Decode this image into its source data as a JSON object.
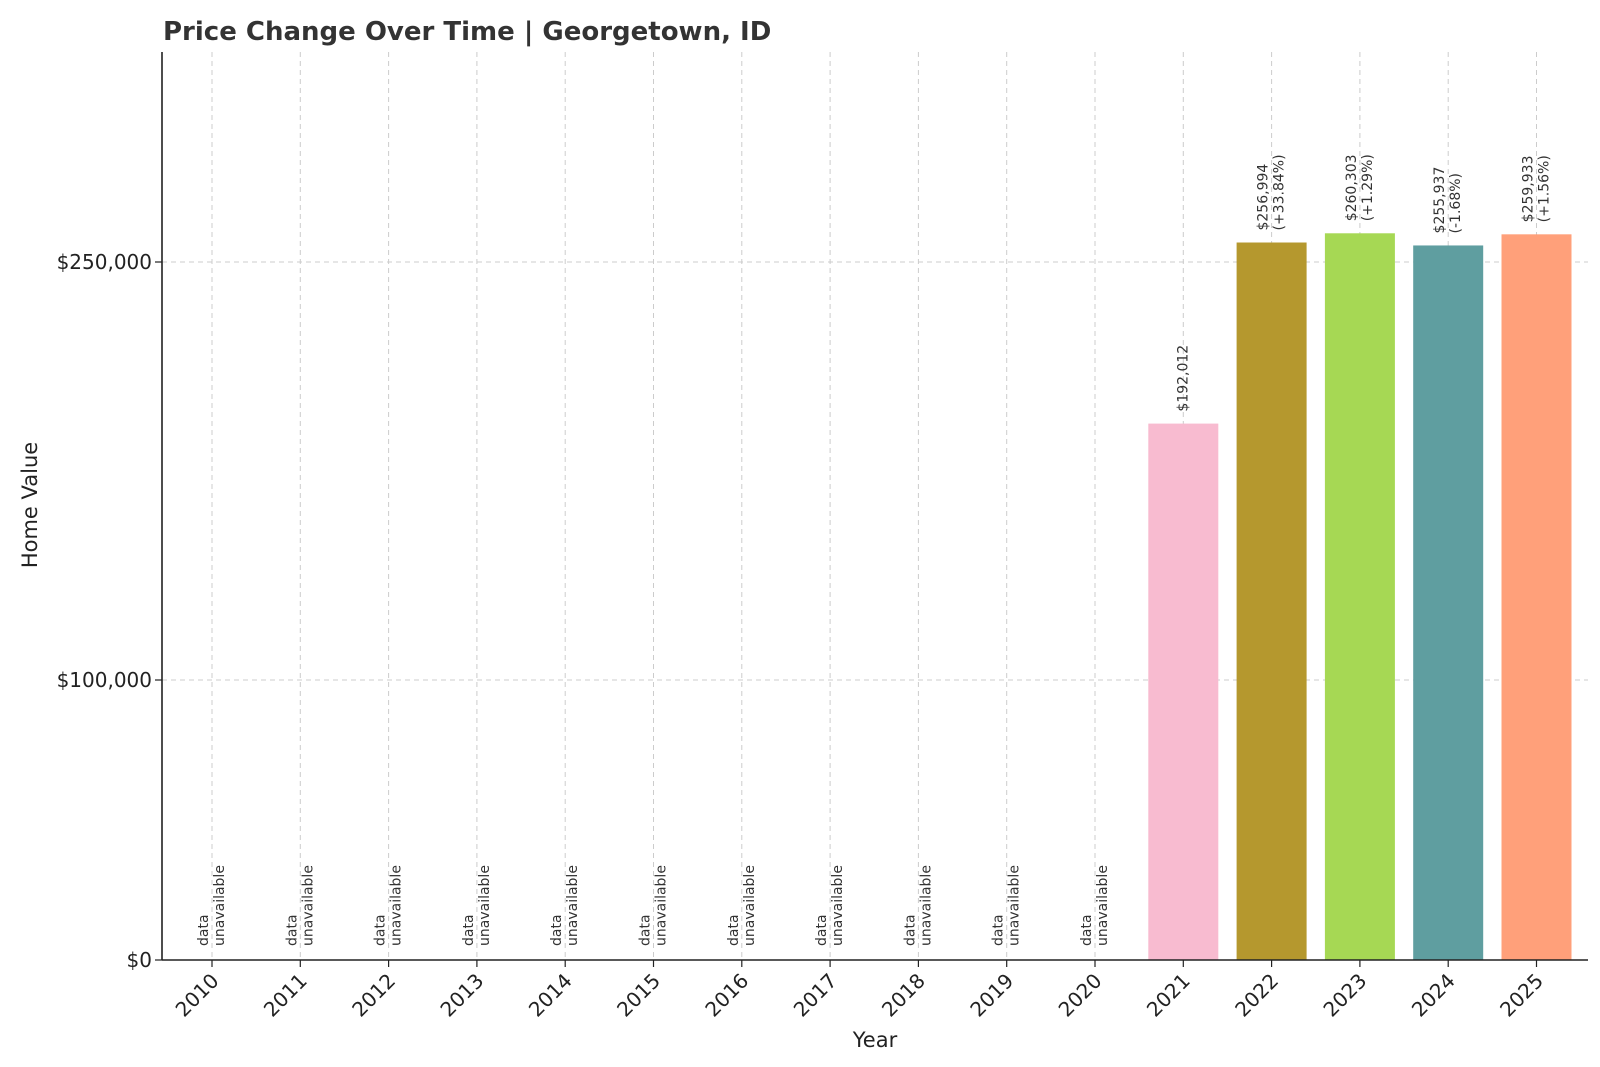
{
  "chart_data": {
    "type": "bar",
    "title": "Price Change Over Time | Georgetown, ID",
    "xlabel": "Year",
    "ylabel": "Home Value",
    "categories": [
      "2010",
      "2011",
      "2012",
      "2013",
      "2014",
      "2015",
      "2016",
      "2017",
      "2018",
      "2019",
      "2020",
      "2021",
      "2022",
      "2023",
      "2024",
      "2025"
    ],
    "values": [
      null,
      null,
      null,
      null,
      null,
      null,
      null,
      null,
      null,
      null,
      null,
      192012,
      256994,
      260303,
      255937,
      259933
    ],
    "labels": [
      [
        "data",
        "unavailable"
      ],
      [
        "data",
        "unavailable"
      ],
      [
        "data",
        "unavailable"
      ],
      [
        "data",
        "unavailable"
      ],
      [
        "data",
        "unavailable"
      ],
      [
        "data",
        "unavailable"
      ],
      [
        "data",
        "unavailable"
      ],
      [
        "data",
        "unavailable"
      ],
      [
        "data",
        "unavailable"
      ],
      [
        "data",
        "unavailable"
      ],
      [
        "data",
        "unavailable"
      ],
      [
        "$192,012"
      ],
      [
        "$256,994",
        "(+33.84%)"
      ],
      [
        "$260,303",
        "(+1.29%)"
      ],
      [
        "$255,937",
        "(-1.68%)"
      ],
      [
        "$259,933",
        "(+1.56%)"
      ]
    ],
    "colors": [
      "#f8bbd0",
      "#f8bbd0",
      "#f8bbd0",
      "#f8bbd0",
      "#f8bbd0",
      "#f8bbd0",
      "#f8bbd0",
      "#f8bbd0",
      "#f8bbd0",
      "#f8bbd0",
      "#f8bbd0",
      "#f8bbd0",
      "#b5982e",
      "#a6d854",
      "#5f9ea0",
      "#ffa07a"
    ],
    "yticks": [
      {
        "value": 0,
        "label": "$0"
      },
      {
        "value": 100000,
        "label": "$100,000"
      },
      {
        "value": 250000,
        "label": "$250,000"
      }
    ],
    "ylim": [
      0,
      325000
    ],
    "grid": true
  }
}
